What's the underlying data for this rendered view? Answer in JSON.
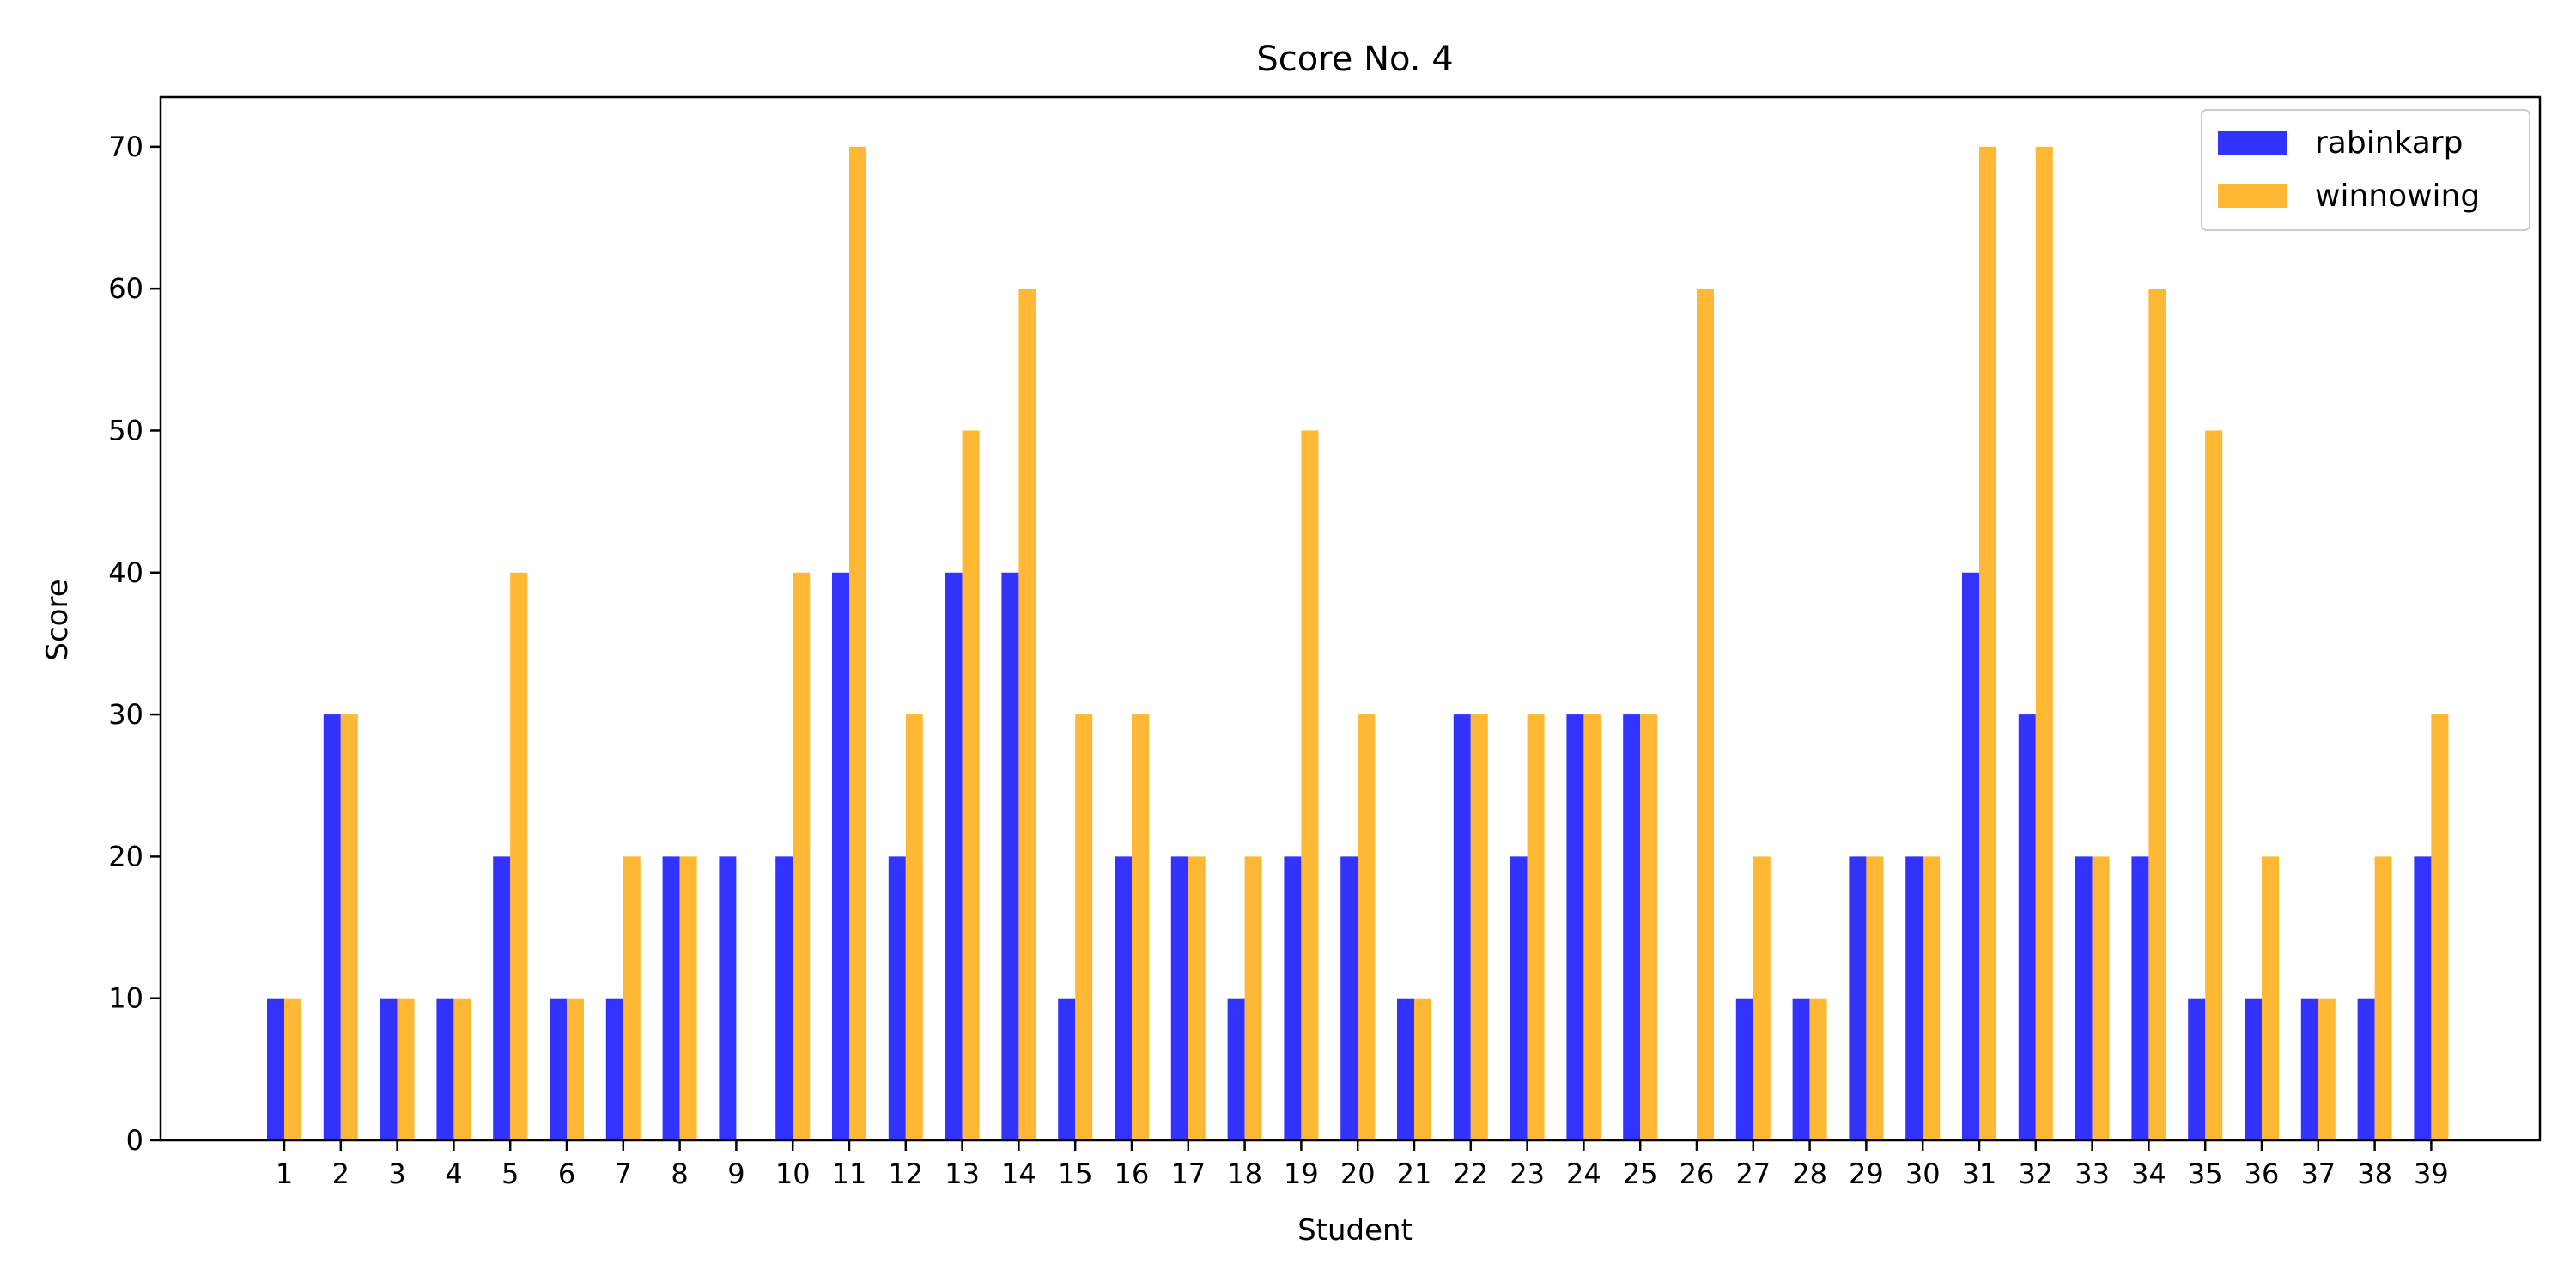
{
  "chart_data": {
    "type": "bar",
    "title": "Score No. 4",
    "xlabel": "Student",
    "ylabel": "Score",
    "ylim": [
      0,
      73.5
    ],
    "yticks": [
      0,
      10,
      20,
      30,
      40,
      50,
      60,
      70
    ],
    "categories": [
      "1",
      "2",
      "3",
      "4",
      "5",
      "6",
      "7",
      "8",
      "9",
      "10",
      "11",
      "12",
      "13",
      "14",
      "15",
      "16",
      "17",
      "18",
      "19",
      "20",
      "21",
      "22",
      "23",
      "24",
      "25",
      "26",
      "27",
      "28",
      "29",
      "30",
      "31",
      "32",
      "33",
      "34",
      "35",
      "36",
      "37",
      "38",
      "39"
    ],
    "series": [
      {
        "name": "rabinkarp",
        "color": "#3333ff",
        "values": [
          10,
          30,
          10,
          10,
          20,
          10,
          10,
          20,
          20,
          20,
          40,
          20,
          40,
          40,
          10,
          20,
          20,
          10,
          20,
          20,
          10,
          30,
          20,
          30,
          30,
          0,
          10,
          10,
          20,
          20,
          40,
          30,
          20,
          20,
          10,
          10,
          10,
          10,
          20
        ]
      },
      {
        "name": "winnowing",
        "color": "#ffb833",
        "values": [
          10,
          30,
          10,
          10,
          40,
          10,
          20,
          20,
          0,
          40,
          70,
          30,
          50,
          60,
          30,
          30,
          20,
          20,
          50,
          30,
          10,
          30,
          30,
          30,
          30,
          60,
          20,
          10,
          20,
          20,
          70,
          70,
          20,
          60,
          50,
          20,
          10,
          20,
          30
        ]
      }
    ],
    "legend_position": "top-right",
    "grid": false
  }
}
